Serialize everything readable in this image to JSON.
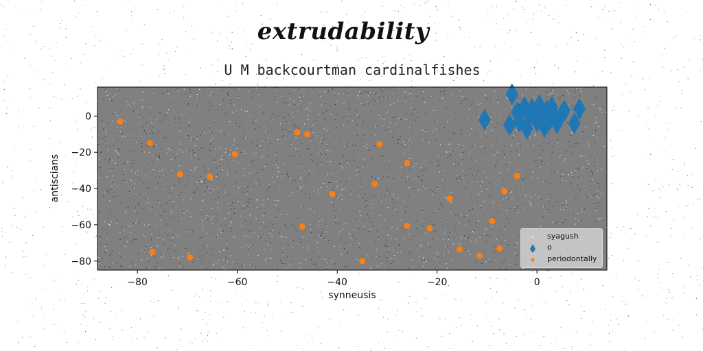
{
  "figure": {
    "suptitle": "extrudability"
  },
  "chart_data": {
    "type": "scatter",
    "title": "U M backcourtman cardinalfishes",
    "xlabel": "synneusis",
    "ylabel": "antiscians",
    "xlim": [
      -88,
      14
    ],
    "ylim": [
      -85,
      16
    ],
    "xticks": [
      -80,
      -60,
      -40,
      -20,
      0
    ],
    "yticks": [
      -80,
      -60,
      -40,
      -20,
      0
    ],
    "xtick_labels": [
      "−80",
      "−60",
      "−40",
      "−20",
      "0"
    ],
    "ytick_labels": [
      "−80",
      "−60",
      "−40",
      "−20",
      "0"
    ],
    "grid": false,
    "background": "#808080",
    "legend_position": "lower-right",
    "series": [
      {
        "name": "syagush",
        "marker": "dot",
        "color": "#ffffff",
        "points": []
      },
      {
        "name": "o",
        "marker": "thin-diamond",
        "color": "#1f77b4",
        "points": [
          [
            -10.5,
            -2
          ],
          [
            -5,
            12
          ],
          [
            -5.5,
            -5
          ],
          [
            -4,
            2
          ],
          [
            -3.5,
            -3
          ],
          [
            -2.5,
            5
          ],
          [
            -2,
            -7
          ],
          [
            -1.5,
            0
          ],
          [
            -1,
            4
          ],
          [
            0,
            -3
          ],
          [
            0.5,
            6
          ],
          [
            1,
            0
          ],
          [
            1.5,
            -6
          ],
          [
            2,
            3
          ],
          [
            2.5,
            -2
          ],
          [
            3,
            5
          ],
          [
            3.5,
            0
          ],
          [
            4,
            -4
          ],
          [
            5,
            1
          ],
          [
            5.5,
            3
          ],
          [
            7.5,
            -4
          ],
          [
            8.5,
            4
          ]
        ]
      },
      {
        "name": "periodontally",
        "marker": "circle",
        "color": "#ff7f0e",
        "points": [
          [
            -83.5,
            -3
          ],
          [
            -77.5,
            -15
          ],
          [
            -77,
            -75
          ],
          [
            -71.5,
            -32
          ],
          [
            -69.5,
            -78
          ],
          [
            -65.5,
            -33.5
          ],
          [
            -60.5,
            -21
          ],
          [
            -48,
            -9
          ],
          [
            -47,
            -61
          ],
          [
            -46,
            -10
          ],
          [
            -41,
            -43
          ],
          [
            -35,
            -80
          ],
          [
            -32.5,
            -37.5
          ],
          [
            -31.5,
            -15.5
          ],
          [
            -26,
            -26
          ],
          [
            -26,
            -60.5
          ],
          [
            -21.5,
            -62
          ],
          [
            -17.5,
            -45.5
          ],
          [
            -15.5,
            -73.5
          ],
          [
            -11.5,
            -77
          ],
          [
            -9,
            -58
          ],
          [
            -7.5,
            -73
          ],
          [
            -6.5,
            -41.5
          ],
          [
            -4,
            -33
          ]
        ]
      }
    ]
  }
}
